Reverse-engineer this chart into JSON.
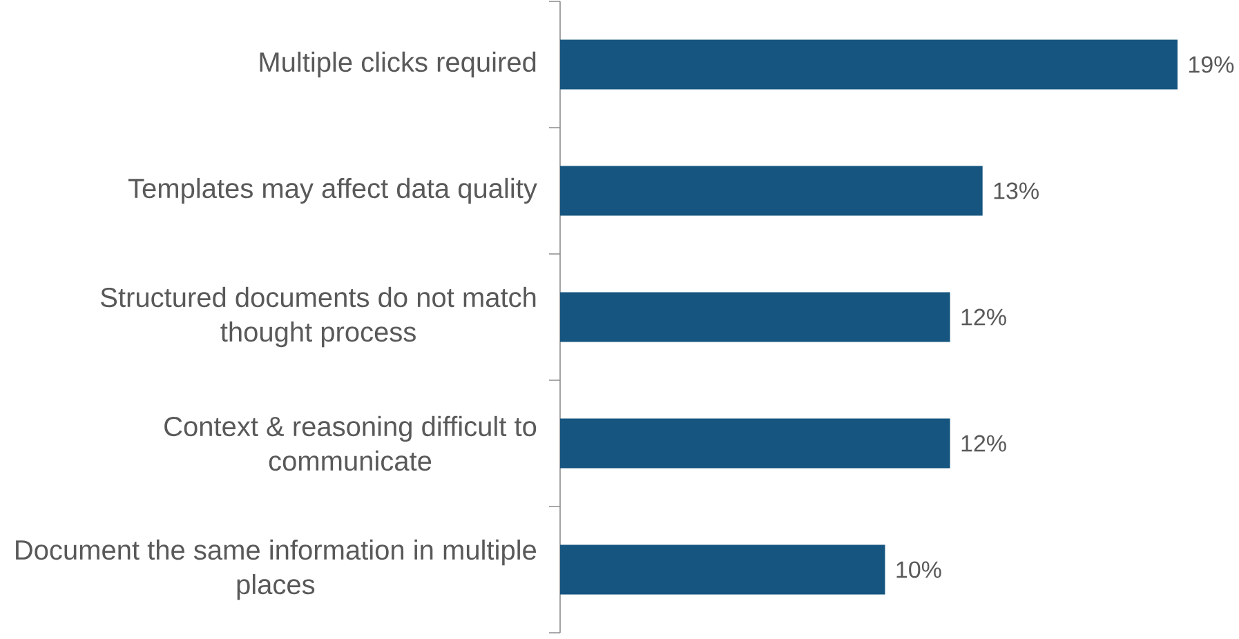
{
  "chart_data": {
    "type": "bar",
    "orientation": "horizontal",
    "color": "#15557f",
    "categories": [
      "Multiple clicks required",
      "Templates may affect data quality",
      "Structured documents do not match thought process",
      "Context & reasoning difficult to communicate",
      "Document the same information in multiple places"
    ],
    "values": [
      19,
      13,
      12,
      12,
      10
    ],
    "value_labels": [
      "19%",
      "13%",
      "12%",
      "12%",
      "10%"
    ]
  }
}
